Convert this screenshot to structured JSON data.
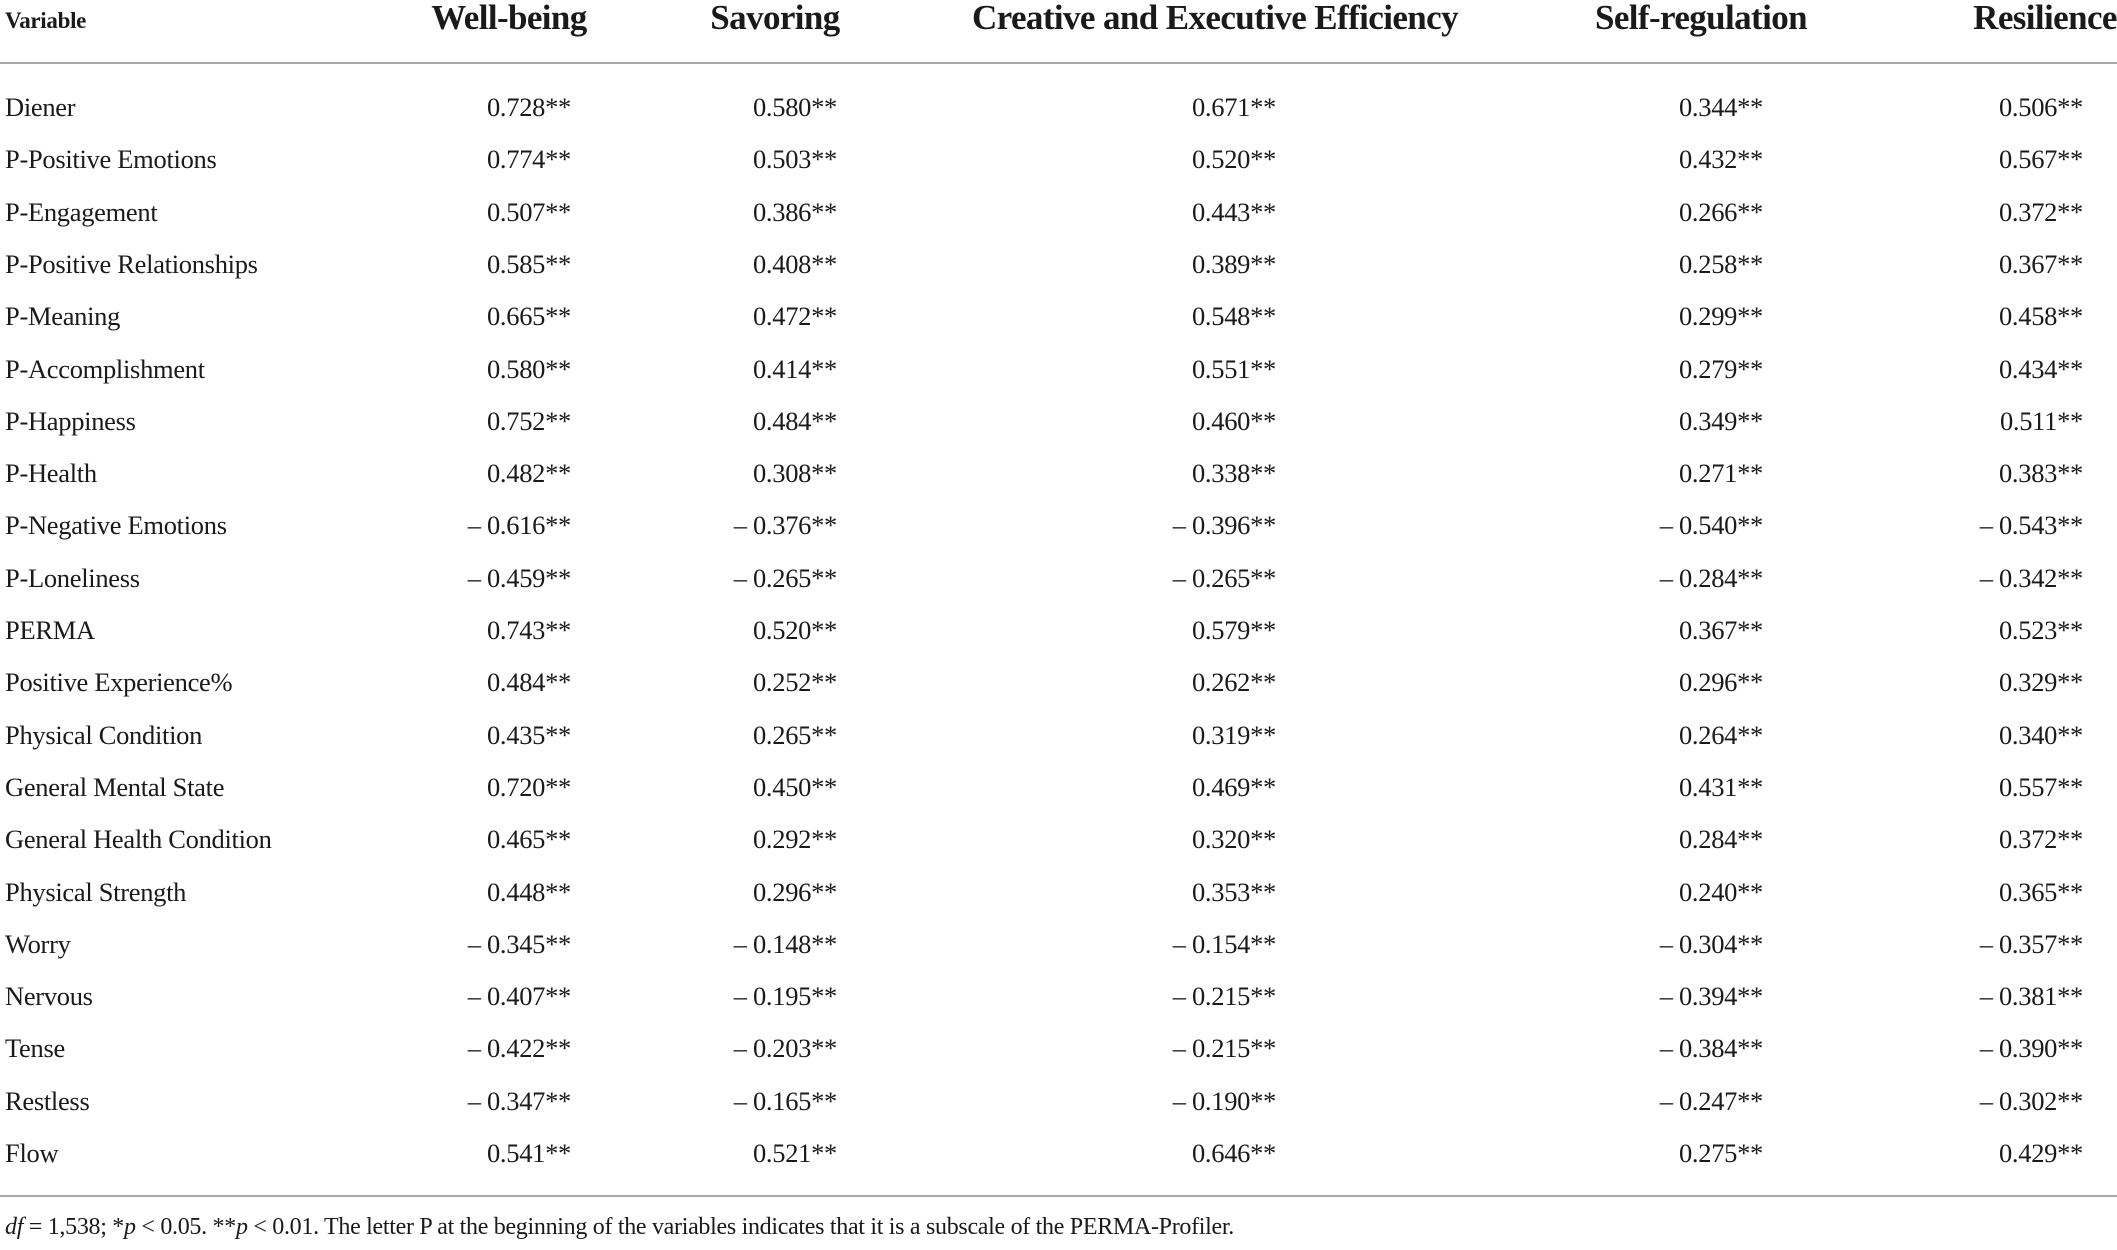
{
  "table": {
    "header": {
      "variable": "Variable",
      "columns": [
        "Well-being",
        "Savoring",
        "Creative and Executive Efficiency",
        "Self-regulation",
        "Resilience"
      ]
    },
    "rows": [
      {
        "label": "Diener",
        "values": [
          "0.728**",
          "0.580**",
          "0.671**",
          "0.344**",
          "0.506**"
        ]
      },
      {
        "label": "P-Positive Emotions",
        "values": [
          "0.774**",
          "0.503**",
          "0.520**",
          "0.432**",
          "0.567**"
        ]
      },
      {
        "label": "P-Engagement",
        "values": [
          "0.507**",
          "0.386**",
          "0.443**",
          "0.266**",
          "0.372**"
        ]
      },
      {
        "label": "P-Positive Relationships",
        "values": [
          "0.585**",
          "0.408**",
          "0.389**",
          "0.258**",
          "0.367**"
        ]
      },
      {
        "label": "P-Meaning",
        "values": [
          "0.665**",
          "0.472**",
          "0.548**",
          "0.299**",
          "0.458**"
        ]
      },
      {
        "label": "P-Accomplishment",
        "values": [
          "0.580**",
          "0.414**",
          "0.551**",
          "0.279**",
          "0.434**"
        ]
      },
      {
        "label": "P-Happiness",
        "values": [
          "0.752**",
          "0.484**",
          "0.460**",
          "0.349**",
          "0.511**"
        ]
      },
      {
        "label": "P-Health",
        "values": [
          "0.482**",
          "0.308**",
          "0.338**",
          "0.271**",
          "0.383**"
        ]
      },
      {
        "label": "P-Negative Emotions",
        "values": [
          "– 0.616**",
          "– 0.376**",
          "– 0.396**",
          "– 0.540**",
          "– 0.543**"
        ]
      },
      {
        "label": "P-Loneliness",
        "values": [
          "– 0.459**",
          "– 0.265**",
          "– 0.265**",
          "– 0.284**",
          "– 0.342**"
        ]
      },
      {
        "label": "PERMA",
        "values": [
          "0.743**",
          "0.520**",
          "0.579**",
          "0.367**",
          "0.523**"
        ]
      },
      {
        "label": "Positive Experience%",
        "values": [
          "0.484**",
          "0.252**",
          "0.262**",
          "0.296**",
          "0.329**"
        ]
      },
      {
        "label": "Physical Condition",
        "values": [
          "0.435**",
          "0.265**",
          "0.319**",
          "0.264**",
          "0.340**"
        ]
      },
      {
        "label": "General Mental State",
        "values": [
          "0.720**",
          "0.450**",
          "0.469**",
          "0.431**",
          "0.557**"
        ]
      },
      {
        "label": "General Health Condition",
        "values": [
          "0.465**",
          "0.292**",
          "0.320**",
          "0.284**",
          "0.372**"
        ]
      },
      {
        "label": "Physical Strength",
        "values": [
          "0.448**",
          "0.296**",
          "0.353**",
          "0.240**",
          "0.365**"
        ]
      },
      {
        "label": "Worry",
        "values": [
          "– 0.345**",
          "– 0.148**",
          "– 0.154**",
          "– 0.304**",
          "– 0.357**"
        ]
      },
      {
        "label": "Nervous",
        "values": [
          "– 0.407**",
          "– 0.195**",
          "– 0.215**",
          "– 0.394**",
          "– 0.381**"
        ]
      },
      {
        "label": "Tense",
        "values": [
          "– 0.422**",
          "– 0.203**",
          "– 0.215**",
          "– 0.384**",
          "– 0.390**"
        ]
      },
      {
        "label": "Restless",
        "values": [
          "– 0.347**",
          "– 0.165**",
          "– 0.190**",
          "– 0.247**",
          "– 0.302**"
        ]
      },
      {
        "label": "Flow",
        "values": [
          "0.541**",
          "0.521**",
          "0.646**",
          "0.275**",
          "0.429**"
        ]
      }
    ],
    "footnote": {
      "df_label": "df",
      "df_text": " = 1,538; *",
      "p1": "p",
      "p1_text": " < 0.05. **",
      "p2": "p",
      "p2_text": " < 0.01. The letter P at the beginning of the variables indicates that it is a subscale of the PERMA-Profiler."
    }
  },
  "colors": {
    "text": "#1a1a1a",
    "rule": "#a8a8a8",
    "background": "#ffffff"
  }
}
